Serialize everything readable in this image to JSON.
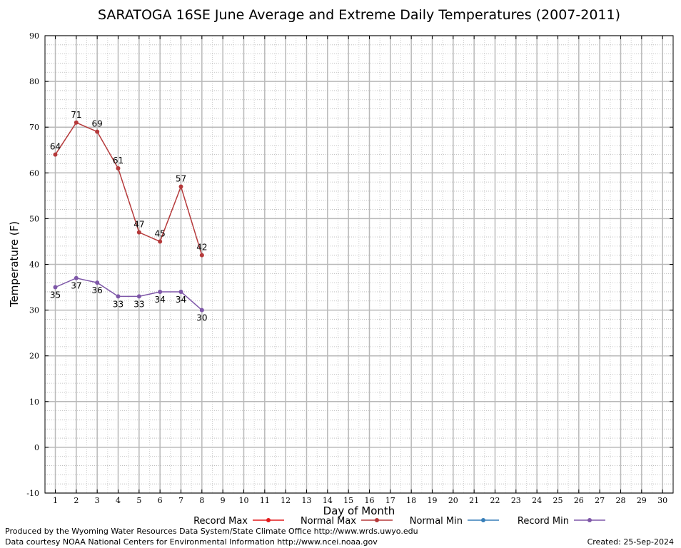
{
  "chart_data": {
    "type": "line",
    "title": "SARATOGA 16SE June Average and Extreme Daily Temperatures (2007-2011)",
    "xlabel": "Day of Month",
    "ylabel": "Temperature (F)",
    "xlim": [
      1,
      30
    ],
    "ylim": [
      -10,
      90
    ],
    "x_ticks": [
      1,
      2,
      3,
      4,
      5,
      6,
      7,
      8,
      9,
      10,
      11,
      12,
      13,
      14,
      15,
      16,
      17,
      18,
      19,
      20,
      21,
      22,
      23,
      24,
      25,
      26,
      27,
      28,
      29,
      30
    ],
    "y_ticks": [
      -10,
      0,
      10,
      20,
      30,
      40,
      50,
      60,
      70,
      80,
      90
    ],
    "grid": true,
    "legend_position": "bottom",
    "series": [
      {
        "name": "Record Max",
        "color": "#e41a1c",
        "x": [],
        "values": []
      },
      {
        "name": "Normal Max",
        "color": "#b5393a",
        "x": [
          1,
          2,
          3,
          4,
          5,
          6,
          7,
          8
        ],
        "values": [
          64,
          71,
          69,
          61,
          47,
          45,
          57,
          42
        ],
        "labels": [
          "64",
          "71",
          "69",
          "61",
          "47",
          "45",
          "57",
          "42"
        ],
        "label_side": "above"
      },
      {
        "name": "Normal Min",
        "color": "#377eb8",
        "x": [],
        "values": []
      },
      {
        "name": "Record Min",
        "color": "#7e57a8",
        "x": [
          1,
          2,
          3,
          4,
          5,
          6,
          7,
          8
        ],
        "values": [
          35,
          37,
          36,
          33,
          33,
          34,
          34,
          30
        ],
        "labels": [
          "35",
          "37",
          "36",
          "33",
          "33",
          "34",
          "34",
          "30"
        ],
        "label_side": "below"
      }
    ]
  },
  "footer": {
    "line1": "Produced by the Wyoming Water Resources Data System/State Climate Office http://www.wrds.uwyo.edu",
    "line2": "Data courtesy NOAA National Centers for Environmental Information http://www.ncei.noaa.gov",
    "created": "Created:  25-Sep-2024"
  }
}
